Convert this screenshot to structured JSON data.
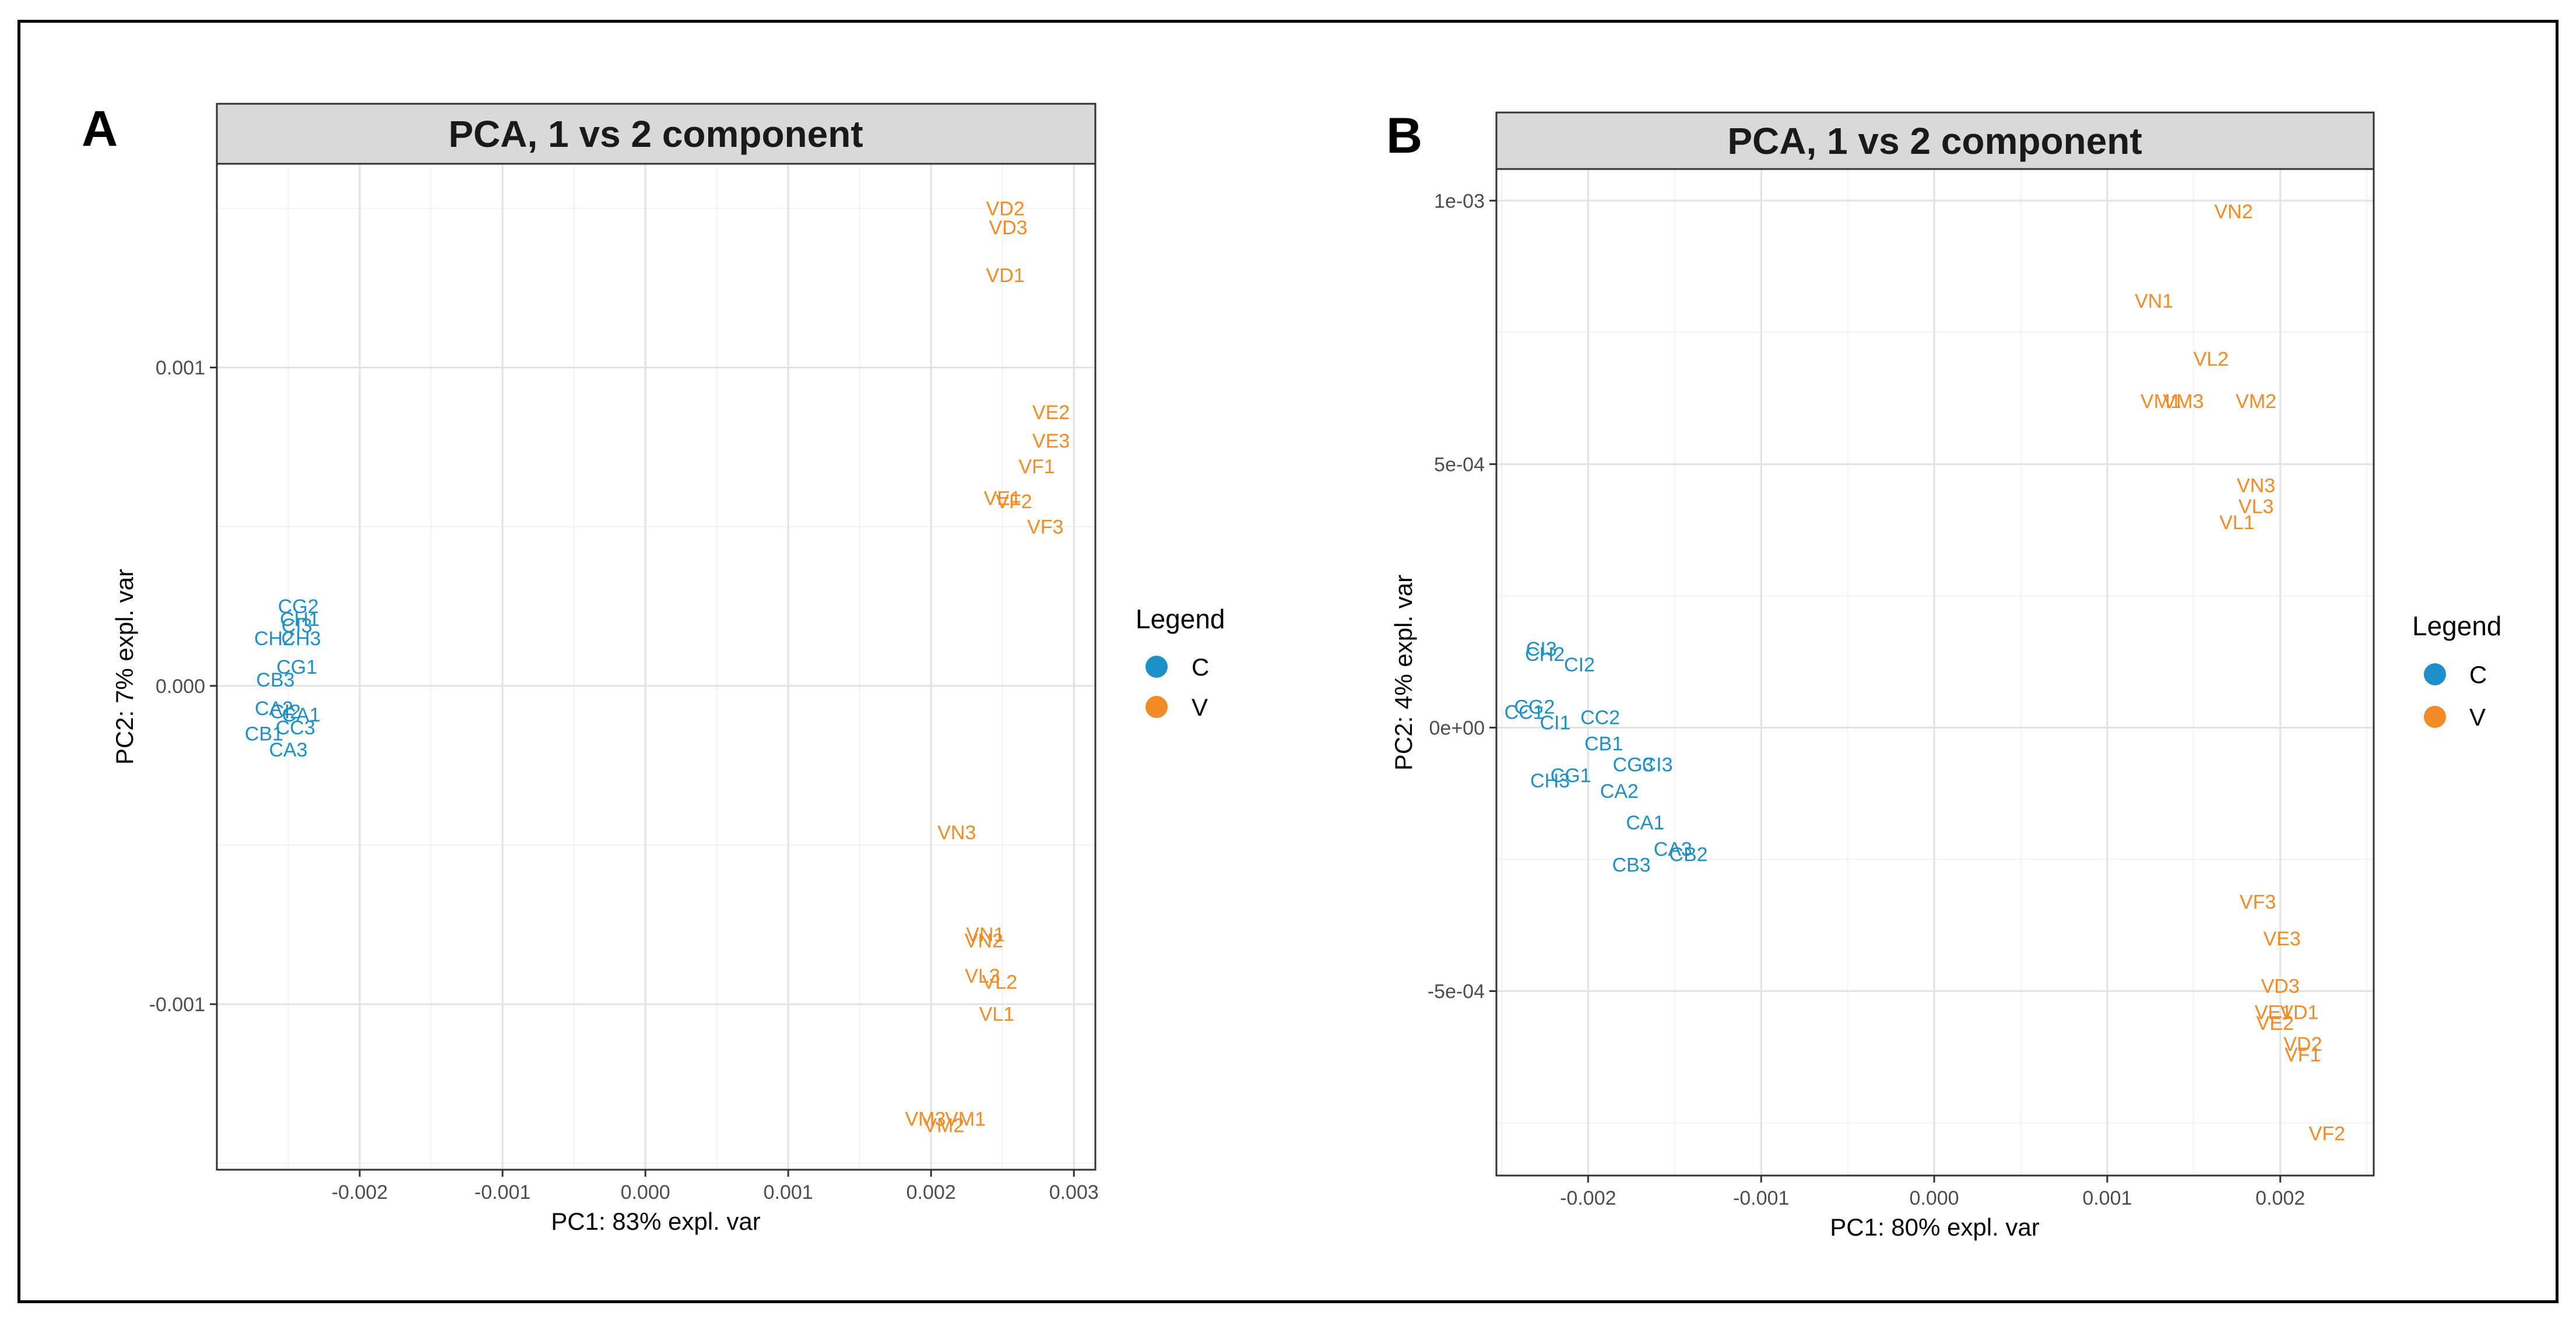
{
  "figure": {
    "panels": [
      {
        "letter": "A"
      },
      {
        "letter": "B"
      }
    ]
  },
  "colors": {
    "C": "#1F8FC9",
    "V": "#F28A25",
    "grid_major": "#E2E2E2",
    "grid_minor": "#F1F1F1",
    "strip": "#D9D9D9"
  },
  "chart_data": [
    {
      "type": "scatter",
      "title": "PCA, 1 vs 2 component",
      "xlabel": "PC1: 83% expl. var",
      "ylabel": "PC2: 7% expl. var",
      "xlim": [
        -0.003,
        0.00315
      ],
      "ylim": [
        -0.00152,
        0.00164
      ],
      "xticks": [
        -0.002,
        -0.001,
        0.0,
        0.001,
        0.002,
        0.003
      ],
      "xtick_labels": [
        "-0.002",
        "-0.001",
        "0.000",
        "0.001",
        "0.002",
        "0.003"
      ],
      "yticks": [
        -0.001,
        0.0,
        0.001
      ],
      "ytick_labels": [
        "-0.001",
        "0.000",
        "0.001"
      ],
      "legend": {
        "title": "Legend",
        "position": "right",
        "entries": [
          {
            "label": "C",
            "group": "C"
          },
          {
            "label": "V",
            "group": "V"
          }
        ]
      },
      "points": [
        {
          "label": "VD2",
          "group": "V",
          "x": 0.00252,
          "y": 0.0015
        },
        {
          "label": "VD3",
          "group": "V",
          "x": 0.00254,
          "y": 0.00144
        },
        {
          "label": "VD1",
          "group": "V",
          "x": 0.00252,
          "y": 0.00129
        },
        {
          "label": "VE2",
          "group": "V",
          "x": 0.00284,
          "y": 0.00086
        },
        {
          "label": "VE3",
          "group": "V",
          "x": 0.00284,
          "y": 0.00077
        },
        {
          "label": "VF1",
          "group": "V",
          "x": 0.00274,
          "y": 0.00069
        },
        {
          "label": "VE1",
          "group": "V",
          "x": 0.0025,
          "y": 0.00059
        },
        {
          "label": "VF2",
          "group": "V",
          "x": 0.00258,
          "y": 0.00058
        },
        {
          "label": "VF3",
          "group": "V",
          "x": 0.0028,
          "y": 0.0005
        },
        {
          "label": "VN3",
          "group": "V",
          "x": 0.00218,
          "y": -0.00046
        },
        {
          "label": "VN1",
          "group": "V",
          "x": 0.00238,
          "y": -0.00078
        },
        {
          "label": "VN2",
          "group": "V",
          "x": 0.00237,
          "y": -0.0008
        },
        {
          "label": "VL3",
          "group": "V",
          "x": 0.00236,
          "y": -0.00091
        },
        {
          "label": "VL2",
          "group": "V",
          "x": 0.00248,
          "y": -0.00093
        },
        {
          "label": "VL1",
          "group": "V",
          "x": 0.00246,
          "y": -0.00103
        },
        {
          "label": "VM3",
          "group": "V",
          "x": 0.00196,
          "y": -0.00136
        },
        {
          "label": "VM1",
          "group": "V",
          "x": 0.00224,
          "y": -0.00136
        },
        {
          "label": "VM2",
          "group": "V",
          "x": 0.00209,
          "y": -0.00138
        },
        {
          "label": "CG2",
          "group": "C",
          "x": -0.00243,
          "y": 0.00025
        },
        {
          "label": "CH1",
          "group": "C",
          "x": -0.00242,
          "y": 0.00021
        },
        {
          "label": "CI3",
          "group": "C",
          "x": -0.00244,
          "y": 0.00019
        },
        {
          "label": "CH2",
          "group": "C",
          "x": -0.0026,
          "y": 0.00015
        },
        {
          "label": "CH3",
          "group": "C",
          "x": -0.00241,
          "y": 0.00015
        },
        {
          "label": "CG1",
          "group": "C",
          "x": -0.00244,
          "y": 6e-05
        },
        {
          "label": "CB3",
          "group": "C",
          "x": -0.00259,
          "y": 2e-05
        },
        {
          "label": "CA2",
          "group": "C",
          "x": -0.0026,
          "y": -7e-05
        },
        {
          "label": "CI2",
          "group": "C",
          "x": -0.00252,
          "y": -8e-05
        },
        {
          "label": "CA1",
          "group": "C",
          "x": -0.00241,
          "y": -9e-05
        },
        {
          "label": "CC3",
          "group": "C",
          "x": -0.00245,
          "y": -0.00013
        },
        {
          "label": "CB1",
          "group": "C",
          "x": -0.00267,
          "y": -0.00015
        },
        {
          "label": "CA3",
          "group": "C",
          "x": -0.0025,
          "y": -0.0002
        }
      ]
    },
    {
      "type": "scatter",
      "title": "PCA, 1 vs 2 component",
      "xlabel": "PC1: 80% expl. var",
      "ylabel": "PC2: 4% expl. var",
      "xlim": [
        -0.00253,
        0.00254
      ],
      "ylim": [
        -0.00085,
        0.00106
      ],
      "xticks": [
        -0.002,
        -0.001,
        0.0,
        0.001,
        0.002
      ],
      "xtick_labels": [
        "-0.002",
        "-0.001",
        "0.000",
        "0.001",
        "0.002"
      ],
      "yticks": [
        -0.0005,
        0.0,
        0.0005,
        0.001
      ],
      "ytick_labels": [
        "-5e-04",
        "0e+00",
        "5e-04",
        "1e-03"
      ],
      "legend": {
        "title": "Legend",
        "position": "right",
        "entries": [
          {
            "label": "C",
            "group": "C"
          },
          {
            "label": "V",
            "group": "V"
          }
        ]
      },
      "points": [
        {
          "label": "VN2",
          "group": "V",
          "x": 0.00173,
          "y": 0.00098
        },
        {
          "label": "VN1",
          "group": "V",
          "x": 0.00127,
          "y": 0.00081
        },
        {
          "label": "VL2",
          "group": "V",
          "x": 0.0016,
          "y": 0.0007
        },
        {
          "label": "VM1",
          "group": "V",
          "x": 0.00131,
          "y": 0.00062
        },
        {
          "label": "VM3",
          "group": "V",
          "x": 0.00144,
          "y": 0.00062
        },
        {
          "label": "VM2",
          "group": "V",
          "x": 0.00186,
          "y": 0.00062
        },
        {
          "label": "VN3",
          "group": "V",
          "x": 0.00186,
          "y": 0.00046
        },
        {
          "label": "VL3",
          "group": "V",
          "x": 0.00186,
          "y": 0.00042
        },
        {
          "label": "VL1",
          "group": "V",
          "x": 0.00175,
          "y": 0.00039
        },
        {
          "label": "CI3",
          "group": "C",
          "x": -0.00227,
          "y": 0.00015
        },
        {
          "label": "CH2",
          "group": "C",
          "x": -0.00225,
          "y": 0.00014
        },
        {
          "label": "CI2",
          "group": "C",
          "x": -0.00205,
          "y": 0.00012
        },
        {
          "label": "CG2",
          "group": "C",
          "x": -0.00231,
          "y": 4e-05
        },
        {
          "label": "CC1",
          "group": "C",
          "x": -0.00237,
          "y": 3e-05
        },
        {
          "label": "CI1",
          "group": "C",
          "x": -0.00219,
          "y": 1e-05
        },
        {
          "label": "CC2",
          "group": "C",
          "x": -0.00193,
          "y": 2e-05
        },
        {
          "label": "CB1",
          "group": "C",
          "x": -0.00191,
          "y": -3e-05
        },
        {
          "label": "CG3",
          "group": "C",
          "x": -0.00174,
          "y": -7e-05
        },
        {
          "label": "CI3",
          "group": "C",
          "x": -0.0016,
          "y": -7e-05
        },
        {
          "label": "CG1",
          "group": "C",
          "x": -0.0021,
          "y": -9e-05
        },
        {
          "label": "CH3",
          "group": "C",
          "x": -0.00222,
          "y": -0.0001
        },
        {
          "label": "CA2",
          "group": "C",
          "x": -0.00182,
          "y": -0.00012
        },
        {
          "label": "CA1",
          "group": "C",
          "x": -0.00167,
          "y": -0.00018
        },
        {
          "label": "CA3",
          "group": "C",
          "x": -0.00151,
          "y": -0.00023
        },
        {
          "label": "CB2",
          "group": "C",
          "x": -0.00142,
          "y": -0.00024
        },
        {
          "label": "CB3",
          "group": "C",
          "x": -0.00175,
          "y": -0.00026
        },
        {
          "label": "VF3",
          "group": "V",
          "x": 0.00187,
          "y": -0.00033
        },
        {
          "label": "VE3",
          "group": "V",
          "x": 0.00201,
          "y": -0.0004
        },
        {
          "label": "VD3",
          "group": "V",
          "x": 0.002,
          "y": -0.00049
        },
        {
          "label": "VE1",
          "group": "V",
          "x": 0.00196,
          "y": -0.00054
        },
        {
          "label": "VD1",
          "group": "V",
          "x": 0.00211,
          "y": -0.00054
        },
        {
          "label": "VE2",
          "group": "V",
          "x": 0.00197,
          "y": -0.00056
        },
        {
          "label": "VD2",
          "group": "V",
          "x": 0.00213,
          "y": -0.0006
        },
        {
          "label": "VF1",
          "group": "V",
          "x": 0.00213,
          "y": -0.00062
        },
        {
          "label": "VF2",
          "group": "V",
          "x": 0.00227,
          "y": -0.00077
        }
      ]
    }
  ]
}
